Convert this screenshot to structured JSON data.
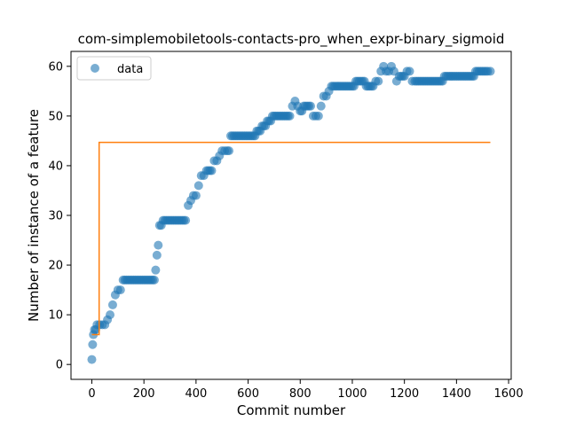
{
  "chart_data": {
    "type": "scatter",
    "title": "com-simplemobiletools-contacts-pro_when_expr-binary_sigmoid",
    "xlabel": "Commit number",
    "ylabel": "Number of instance of a feature",
    "xlim": [
      -80,
      1610
    ],
    "ylim": [
      -3,
      63
    ],
    "xticks": [
      0,
      200,
      400,
      600,
      800,
      1000,
      1200,
      1400,
      1600
    ],
    "yticks": [
      0,
      10,
      20,
      30,
      40,
      50,
      60
    ],
    "grid": false,
    "legend": {
      "placement": "top-left",
      "entries": [
        "data"
      ]
    },
    "colors": {
      "data": "#1f77b4",
      "fit": "#ff7f0e"
    },
    "series": [
      {
        "name": "data",
        "kind": "scatter",
        "x": [
          0,
          3,
          6,
          10,
          15,
          20,
          30,
          40,
          50,
          60,
          70,
          80,
          90,
          100,
          110,
          120,
          140,
          160,
          180,
          200,
          220,
          240,
          245,
          250,
          255,
          260,
          280,
          300,
          320,
          340,
          360,
          370,
          380,
          390,
          400,
          410,
          420,
          430,
          440,
          460,
          470,
          480,
          490,
          500,
          510,
          520,
          540,
          560,
          580,
          600,
          620,
          640,
          660,
          680,
          700,
          720,
          740,
          760,
          770,
          780,
          790,
          800,
          820,
          840,
          850,
          860,
          870,
          880,
          890,
          900,
          910,
          920,
          940,
          960,
          980,
          1000,
          1020,
          1040,
          1060,
          1080,
          1090,
          1100,
          1110,
          1120,
          1130,
          1140,
          1150,
          1160,
          1170,
          1180,
          1200,
          1210,
          1220,
          1230,
          1240,
          1260,
          1280,
          1300,
          1320,
          1340,
          1360,
          1380,
          1400,
          1420,
          1440,
          1460,
          1480,
          1500,
          1520,
          1530
        ],
        "y": [
          1,
          4,
          6,
          7,
          7,
          8,
          8,
          8,
          8,
          9,
          10,
          12,
          14,
          15,
          15,
          17,
          17,
          17,
          17,
          17,
          17,
          17,
          19,
          22,
          24,
          28,
          29,
          29,
          29,
          29,
          29,
          32,
          33,
          34,
          34,
          36,
          38,
          38,
          39,
          39,
          41,
          41,
          42,
          43,
          43,
          43,
          46,
          46,
          46,
          46,
          46,
          47,
          48,
          49,
          50,
          50,
          50,
          50,
          52,
          53,
          52,
          51,
          52,
          52,
          50,
          50,
          50,
          52,
          54,
          54,
          55,
          56,
          56,
          56,
          56,
          56,
          57,
          57,
          56,
          56,
          57,
          57,
          59,
          60,
          59,
          59,
          60,
          59,
          57,
          58,
          58,
          59,
          59,
          57,
          57,
          57,
          57,
          57,
          57,
          57,
          58,
          58,
          58,
          58,
          58,
          58,
          59,
          59,
          59,
          59
        ]
      },
      {
        "name": "",
        "kind": "step-line",
        "x": [
          0,
          28,
          28,
          1530
        ],
        "y": [
          6,
          6,
          44.7,
          44.7
        ]
      }
    ]
  }
}
